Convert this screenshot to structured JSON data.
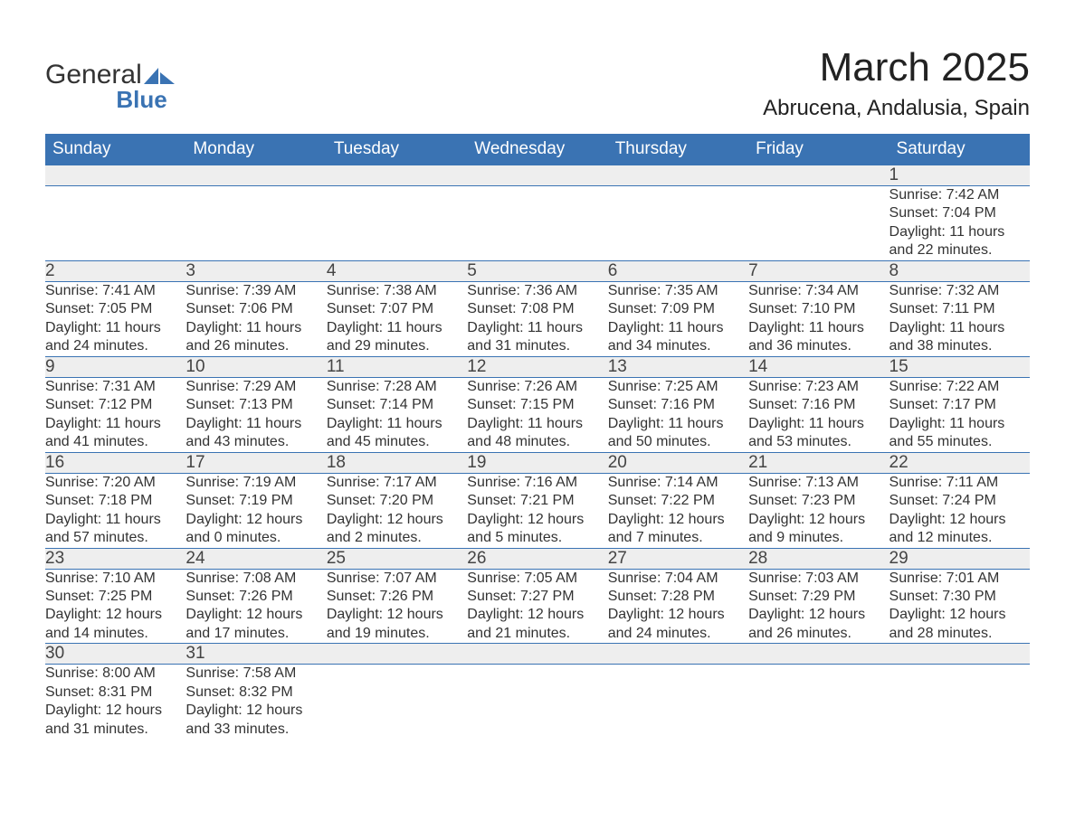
{
  "logo": {
    "word1": "General",
    "word2": "Blue"
  },
  "title": "March 2025",
  "subtitle": "Abrucena, Andalusia, Spain",
  "colors": {
    "header_bg": "#3a73b3",
    "header_text": "#ffffff",
    "daynum_bg": "#eeeeee",
    "border": "#3a73b3",
    "body_text": "#333333",
    "logo_blue": "#3a73b3"
  },
  "columns": [
    "Sunday",
    "Monday",
    "Tuesday",
    "Wednesday",
    "Thursday",
    "Friday",
    "Saturday"
  ],
  "weeks": [
    [
      null,
      null,
      null,
      null,
      null,
      null,
      {
        "n": "1",
        "sr": "7:42 AM",
        "ss": "7:04 PM",
        "dl": "11 hours and 22 minutes."
      }
    ],
    [
      {
        "n": "2",
        "sr": "7:41 AM",
        "ss": "7:05 PM",
        "dl": "11 hours and 24 minutes."
      },
      {
        "n": "3",
        "sr": "7:39 AM",
        "ss": "7:06 PM",
        "dl": "11 hours and 26 minutes."
      },
      {
        "n": "4",
        "sr": "7:38 AM",
        "ss": "7:07 PM",
        "dl": "11 hours and 29 minutes."
      },
      {
        "n": "5",
        "sr": "7:36 AM",
        "ss": "7:08 PM",
        "dl": "11 hours and 31 minutes."
      },
      {
        "n": "6",
        "sr": "7:35 AM",
        "ss": "7:09 PM",
        "dl": "11 hours and 34 minutes."
      },
      {
        "n": "7",
        "sr": "7:34 AM",
        "ss": "7:10 PM",
        "dl": "11 hours and 36 minutes."
      },
      {
        "n": "8",
        "sr": "7:32 AM",
        "ss": "7:11 PM",
        "dl": "11 hours and 38 minutes."
      }
    ],
    [
      {
        "n": "9",
        "sr": "7:31 AM",
        "ss": "7:12 PM",
        "dl": "11 hours and 41 minutes."
      },
      {
        "n": "10",
        "sr": "7:29 AM",
        "ss": "7:13 PM",
        "dl": "11 hours and 43 minutes."
      },
      {
        "n": "11",
        "sr": "7:28 AM",
        "ss": "7:14 PM",
        "dl": "11 hours and 45 minutes."
      },
      {
        "n": "12",
        "sr": "7:26 AM",
        "ss": "7:15 PM",
        "dl": "11 hours and 48 minutes."
      },
      {
        "n": "13",
        "sr": "7:25 AM",
        "ss": "7:16 PM",
        "dl": "11 hours and 50 minutes."
      },
      {
        "n": "14",
        "sr": "7:23 AM",
        "ss": "7:16 PM",
        "dl": "11 hours and 53 minutes."
      },
      {
        "n": "15",
        "sr": "7:22 AM",
        "ss": "7:17 PM",
        "dl": "11 hours and 55 minutes."
      }
    ],
    [
      {
        "n": "16",
        "sr": "7:20 AM",
        "ss": "7:18 PM",
        "dl": "11 hours and 57 minutes."
      },
      {
        "n": "17",
        "sr": "7:19 AM",
        "ss": "7:19 PM",
        "dl": "12 hours and 0 minutes."
      },
      {
        "n": "18",
        "sr": "7:17 AM",
        "ss": "7:20 PM",
        "dl": "12 hours and 2 minutes."
      },
      {
        "n": "19",
        "sr": "7:16 AM",
        "ss": "7:21 PM",
        "dl": "12 hours and 5 minutes."
      },
      {
        "n": "20",
        "sr": "7:14 AM",
        "ss": "7:22 PM",
        "dl": "12 hours and 7 minutes."
      },
      {
        "n": "21",
        "sr": "7:13 AM",
        "ss": "7:23 PM",
        "dl": "12 hours and 9 minutes."
      },
      {
        "n": "22",
        "sr": "7:11 AM",
        "ss": "7:24 PM",
        "dl": "12 hours and 12 minutes."
      }
    ],
    [
      {
        "n": "23",
        "sr": "7:10 AM",
        "ss": "7:25 PM",
        "dl": "12 hours and 14 minutes."
      },
      {
        "n": "24",
        "sr": "7:08 AM",
        "ss": "7:26 PM",
        "dl": "12 hours and 17 minutes."
      },
      {
        "n": "25",
        "sr": "7:07 AM",
        "ss": "7:26 PM",
        "dl": "12 hours and 19 minutes."
      },
      {
        "n": "26",
        "sr": "7:05 AM",
        "ss": "7:27 PM",
        "dl": "12 hours and 21 minutes."
      },
      {
        "n": "27",
        "sr": "7:04 AM",
        "ss": "7:28 PM",
        "dl": "12 hours and 24 minutes."
      },
      {
        "n": "28",
        "sr": "7:03 AM",
        "ss": "7:29 PM",
        "dl": "12 hours and 26 minutes."
      },
      {
        "n": "29",
        "sr": "7:01 AM",
        "ss": "7:30 PM",
        "dl": "12 hours and 28 minutes."
      }
    ],
    [
      {
        "n": "30",
        "sr": "8:00 AM",
        "ss": "8:31 PM",
        "dl": "12 hours and 31 minutes."
      },
      {
        "n": "31",
        "sr": "7:58 AM",
        "ss": "8:32 PM",
        "dl": "12 hours and 33 minutes."
      },
      null,
      null,
      null,
      null,
      null
    ]
  ],
  "labels": {
    "sunrise": "Sunrise: ",
    "sunset": "Sunset: ",
    "daylight": "Daylight: "
  }
}
